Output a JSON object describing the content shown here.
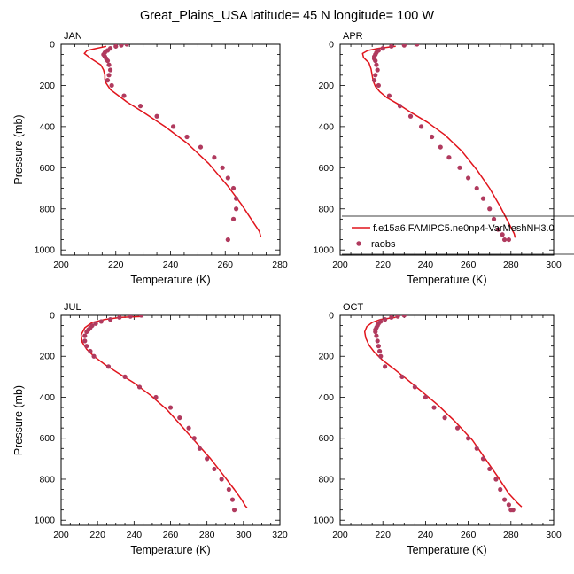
{
  "title": "Great_Plains_USA  latitude= 45 N longitude= 100 W",
  "legend": {
    "model_label": "f.e15a6.FAMIPC5.ne0np4-VarMeshNH3.0",
    "obs_label": "raobs"
  },
  "colors": {
    "model_line": "#e0141c",
    "obs_marker": "#b03a5e",
    "axis": "#000000"
  },
  "chart_data": [
    {
      "type": "line",
      "panel": "JAN",
      "xlabel": "Temperature (K)",
      "ylabel": "Pressure (mb)",
      "xlim": [
        200,
        280
      ],
      "ylim": [
        1025,
        0
      ],
      "xticks": [
        200,
        220,
        240,
        260,
        280
      ],
      "yticks": [
        0,
        200,
        400,
        600,
        800,
        1000
      ],
      "series": [
        {
          "name": "f.e15a6.FAMIPC5.ne0np4-VarMeshNH3.0",
          "style": "line",
          "x": [
            216.5,
            213,
            209.5,
            208.5,
            211,
            214.5,
            215.5,
            216,
            216,
            216.5,
            218,
            221,
            224,
            230,
            238,
            246,
            254,
            261,
            266,
            270,
            272.5,
            273
          ],
          "y": [
            10,
            20,
            30,
            45,
            70,
            100,
            125,
            150,
            170,
            190,
            220,
            250,
            280,
            330,
            400,
            480,
            580,
            690,
            780,
            860,
            910,
            935
          ]
        },
        {
          "name": "raobs",
          "style": "markers",
          "x": [
            224,
            222,
            220,
            218,
            217,
            216,
            215.5,
            216,
            216.5,
            217,
            217.5,
            218,
            217.5,
            217,
            218.5,
            223,
            229,
            235,
            241,
            246,
            251,
            256,
            259,
            261,
            263,
            264,
            264,
            263,
            261
          ],
          "y": [
            0,
            5,
            10,
            20,
            30,
            40,
            50,
            60,
            70,
            80,
            100,
            125,
            150,
            175,
            200,
            250,
            300,
            350,
            400,
            450,
            500,
            550,
            600,
            650,
            700,
            750,
            800,
            850,
            950
          ]
        }
      ]
    },
    {
      "type": "line",
      "panel": "APR",
      "xlabel": "Temperature (K)",
      "ylabel": "",
      "xlim": [
        200,
        300
      ],
      "ylim": [
        1025,
        0
      ],
      "xticks": [
        200,
        220,
        240,
        260,
        280,
        300
      ],
      "yticks": [
        0,
        200,
        400,
        600,
        800,
        1000
      ],
      "series": [
        {
          "name": "f.e15a6.FAMIPC5.ne0np4-VarMeshNH3.0",
          "style": "line",
          "x": [
            226,
            218,
            213,
            210.5,
            211,
            213.5,
            214.5,
            215,
            215.5,
            216.5,
            218.5,
            222,
            227,
            233,
            241,
            249,
            257,
            264,
            270,
            275,
            279,
            281.5,
            282
          ],
          "y": [
            10,
            20,
            30,
            45,
            65,
            90,
            120,
            150,
            180,
            205,
            230,
            260,
            290,
            330,
            380,
            440,
            520,
            610,
            700,
            790,
            870,
            920,
            940
          ]
        },
        {
          "name": "raobs",
          "style": "markers",
          "x": [
            236,
            230,
            224,
            220,
            218,
            217,
            216.5,
            216,
            216,
            216.5,
            217,
            217.5,
            216.5,
            216,
            218,
            223,
            228,
            233,
            238,
            243,
            247,
            251,
            256,
            260,
            264,
            267,
            270,
            272,
            274,
            276,
            277,
            279
          ],
          "y": [
            0,
            5,
            10,
            20,
            30,
            40,
            50,
            60,
            70,
            80,
            100,
            125,
            150,
            175,
            200,
            250,
            300,
            350,
            400,
            450,
            500,
            550,
            600,
            650,
            700,
            750,
            800,
            850,
            900,
            925,
            950,
            950
          ]
        }
      ]
    },
    {
      "type": "line",
      "panel": "JUL",
      "xlabel": "Temperature (K)",
      "ylabel": "Pressure (mb)",
      "xlim": [
        200,
        320
      ],
      "ylim": [
        1025,
        0
      ],
      "xticks": [
        200,
        220,
        240,
        260,
        280,
        300,
        320
      ],
      "yticks": [
        0,
        200,
        400,
        600,
        800,
        1000
      ],
      "series": [
        {
          "name": "f.e15a6.FAMIPC5.ne0np4-VarMeshNH3.0",
          "style": "line",
          "x": [
            245,
            233,
            224,
            217,
            213,
            211,
            211.5,
            214,
            218,
            224,
            231,
            240,
            249,
            258,
            266,
            274,
            282,
            289,
            295,
            299,
            301,
            302
          ],
          "y": [
            5,
            10,
            20,
            35,
            60,
            95,
            130,
            165,
            200,
            240,
            280,
            330,
            390,
            460,
            540,
            620,
            700,
            780,
            850,
            900,
            930,
            940
          ]
        },
        {
          "name": "raobs",
          "style": "markers",
          "x": [
            244,
            238,
            232,
            227,
            222,
            219,
            217,
            216,
            215,
            214,
            213,
            213,
            214,
            216,
            218,
            226,
            235,
            243,
            252,
            260,
            265,
            270,
            273,
            276,
            280,
            284,
            288,
            292,
            294,
            295
          ],
          "y": [
            0,
            5,
            10,
            20,
            30,
            40,
            50,
            60,
            70,
            80,
            100,
            125,
            150,
            175,
            200,
            250,
            300,
            350,
            400,
            450,
            500,
            550,
            600,
            650,
            700,
            750,
            800,
            850,
            900,
            950
          ]
        }
      ]
    },
    {
      "type": "line",
      "panel": "OCT",
      "xlabel": "Temperature (K)",
      "ylabel": "",
      "xlim": [
        200,
        300
      ],
      "ylim": [
        1025,
        0
      ],
      "xticks": [
        200,
        220,
        240,
        260,
        280,
        300
      ],
      "yticks": [
        0,
        200,
        400,
        600,
        800,
        1000
      ],
      "series": [
        {
          "name": "f.e15a6.FAMIPC5.ne0np4-VarMeshNH3.0",
          "style": "line",
          "x": [
            226,
            219,
            215,
            212.5,
            211.5,
            212,
            213.5,
            216,
            220,
            225,
            231,
            238,
            246,
            254,
            262,
            268,
            274,
            279,
            283,
            285
          ],
          "y": [
            10,
            20,
            35,
            55,
            80,
            110,
            145,
            180,
            220,
            260,
            310,
            370,
            440,
            520,
            610,
            700,
            790,
            870,
            915,
            935
          ]
        },
        {
          "name": "raobs",
          "style": "markers",
          "x": [
            230,
            227,
            224,
            221,
            219,
            218,
            217.5,
            217,
            216.5,
            216.5,
            217,
            217.5,
            218,
            218.5,
            219,
            221,
            229,
            235,
            240,
            244,
            249,
            255,
            260,
            264,
            267,
            270,
            273,
            275,
            277,
            279,
            280,
            281
          ],
          "y": [
            0,
            5,
            10,
            20,
            30,
            40,
            50,
            60,
            70,
            80,
            100,
            125,
            150,
            175,
            200,
            250,
            300,
            350,
            400,
            450,
            500,
            550,
            600,
            650,
            700,
            750,
            800,
            850,
            900,
            925,
            950,
            950
          ]
        }
      ]
    }
  ]
}
